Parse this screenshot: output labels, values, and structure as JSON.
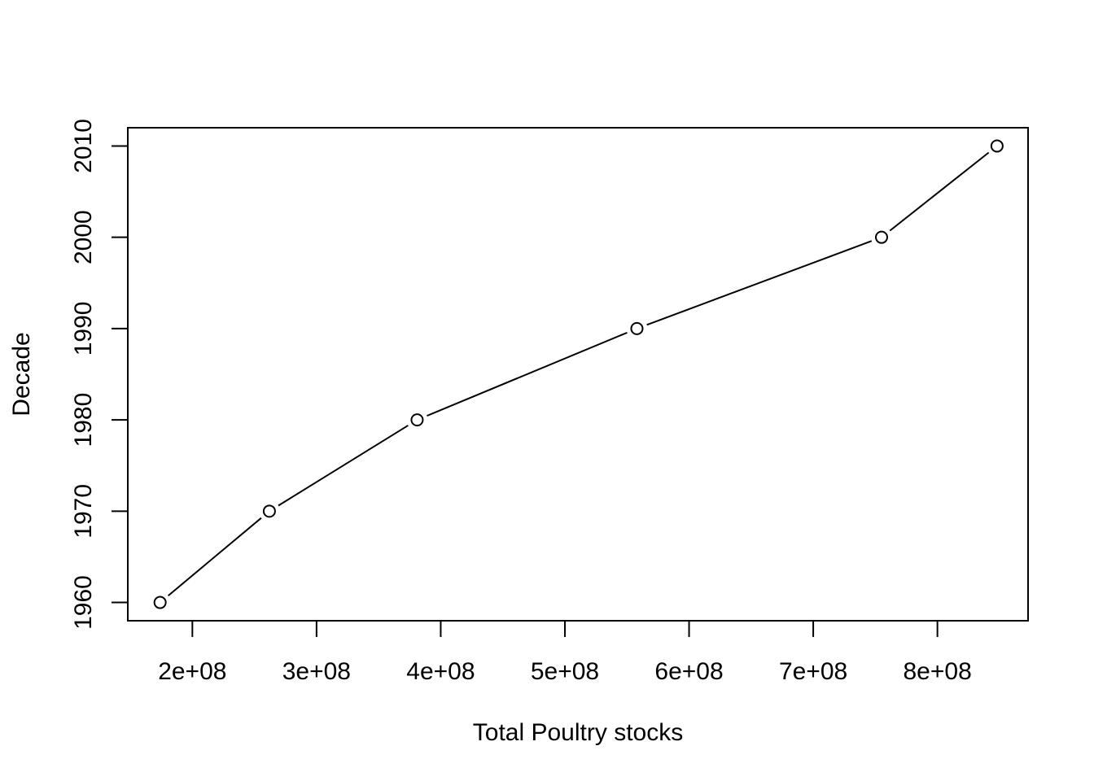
{
  "chart_data": {
    "type": "line",
    "title": "",
    "xlabel": "Total Poultry stocks",
    "ylabel": "Decade",
    "grid": false,
    "legend": "none",
    "x_axis": {
      "min": 148000000,
      "max": 873000000,
      "ticks": [
        200000000,
        300000000,
        400000000,
        500000000,
        600000000,
        700000000,
        800000000
      ],
      "tick_labels": [
        "2e+08",
        "3e+08",
        "4e+08",
        "5e+08",
        "6e+08",
        "7e+08",
        "8e+08"
      ]
    },
    "y_axis": {
      "min": 1958,
      "max": 2012,
      "ticks": [
        1960,
        1970,
        1980,
        1990,
        2000,
        2010
      ],
      "tick_labels": [
        "1960",
        "1970",
        "1980",
        "1990",
        "2000",
        "2010"
      ]
    },
    "series": [
      {
        "marker": "open-circle",
        "color": "#000000",
        "points": [
          {
            "x": 174000000,
            "y": 1960
          },
          {
            "x": 262000000,
            "y": 1970
          },
          {
            "x": 381000000,
            "y": 1980
          },
          {
            "x": 558000000,
            "y": 1990
          },
          {
            "x": 755000000,
            "y": 2000
          },
          {
            "x": 848000000,
            "y": 2010
          }
        ]
      }
    ]
  }
}
